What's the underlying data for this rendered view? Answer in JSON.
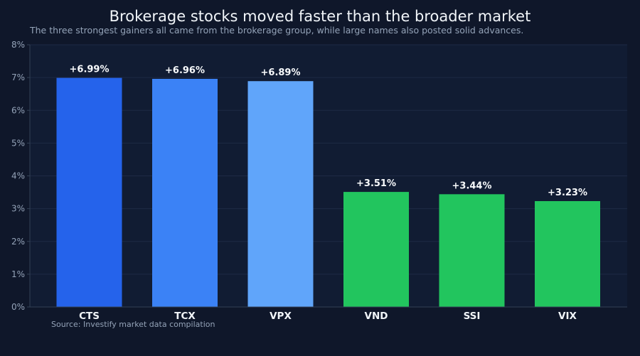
{
  "title": "Brokerage stocks moved faster than the broader market",
  "subtitle": "The three strongest gainers all came from the brokerage group, while large names also posted solid advances.",
  "source": "Source: Investify market data compilation",
  "colors": {
    "background": "#0f172a",
    "plot_bg": "#111c33",
    "grid": "#1e2a44",
    "bar_CTS": "#2563eb",
    "bar_TCX": "#3b82f6",
    "bar_VPX": "#60a5fa",
    "bar_green": "#22c55e"
  },
  "chart_data": {
    "type": "bar",
    "categories": [
      "CTS",
      "TCX",
      "VPX",
      "VND",
      "SSI",
      "VIX"
    ],
    "values": [
      6.99,
      6.96,
      6.89,
      3.51,
      3.44,
      3.23
    ],
    "data_labels": [
      "+6.99%",
      "+6.96%",
      "+6.89%",
      "+3.51%",
      "+3.44%",
      "+3.23%"
    ],
    "bar_colors": [
      "#2563eb",
      "#3b82f6",
      "#60a5fa",
      "#22c55e",
      "#22c55e",
      "#22c55e"
    ],
    "y_ticks": [
      0,
      1,
      2,
      3,
      4,
      5,
      6,
      7,
      8
    ],
    "y_tick_labels": [
      "0%",
      "1%",
      "2%",
      "3%",
      "4%",
      "5%",
      "6%",
      "7%",
      "8%"
    ],
    "ylim": [
      0,
      8
    ],
    "grid": true,
    "legend": "none"
  }
}
